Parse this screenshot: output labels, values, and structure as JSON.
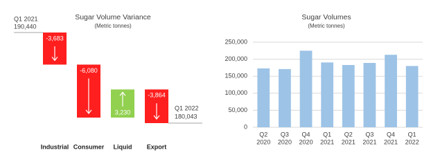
{
  "chart_data": [
    {
      "type": "waterfall",
      "title": "Sugar Volume Variance",
      "subtitle": "(Metric tonnes)",
      "start": {
        "label": "Q1 2021",
        "value": 190440,
        "value_label": "190,440"
      },
      "end": {
        "label": "Q1 2022",
        "value": 180043,
        "value_label": "180,043"
      },
      "categories": [
        "Industrial",
        "Consumer",
        "Liquid",
        "Export"
      ],
      "values": [
        -3683,
        -6080,
        3230,
        -3864
      ],
      "value_labels": [
        "-3,683",
        "-6,080",
        "3,230",
        "-3,864"
      ],
      "colors": {
        "decrease": "#ff1f1f",
        "increase": "#92d050"
      }
    },
    {
      "type": "bar",
      "title": "Sugar Volumes",
      "subtitle": "(Metric tonnes)",
      "categories": [
        [
          "Q2",
          "2020"
        ],
        [
          "Q3",
          "2020"
        ],
        [
          "Q4",
          "2020"
        ],
        [
          "Q1",
          "2021"
        ],
        [
          "Q2",
          "2021"
        ],
        [
          "Q3",
          "2021"
        ],
        [
          "Q4",
          "2021"
        ],
        [
          "Q1",
          "2022"
        ]
      ],
      "values": [
        173000,
        171000,
        225000,
        190440,
        183000,
        189000,
        213000,
        180043
      ],
      "color": "#9dc3e6",
      "ylim": [
        0,
        250000
      ],
      "grid": true,
      "yticks": [
        0,
        {
          "value": 50000,
          "label": "50,000"
        },
        {
          "value": 100000,
          "label": "100,000"
        },
        {
          "value": 150000,
          "label": "150,000"
        },
        {
          "value": 200000,
          "label": "200,000"
        },
        {
          "value": 250000,
          "label": "250,000"
        }
      ]
    }
  ]
}
